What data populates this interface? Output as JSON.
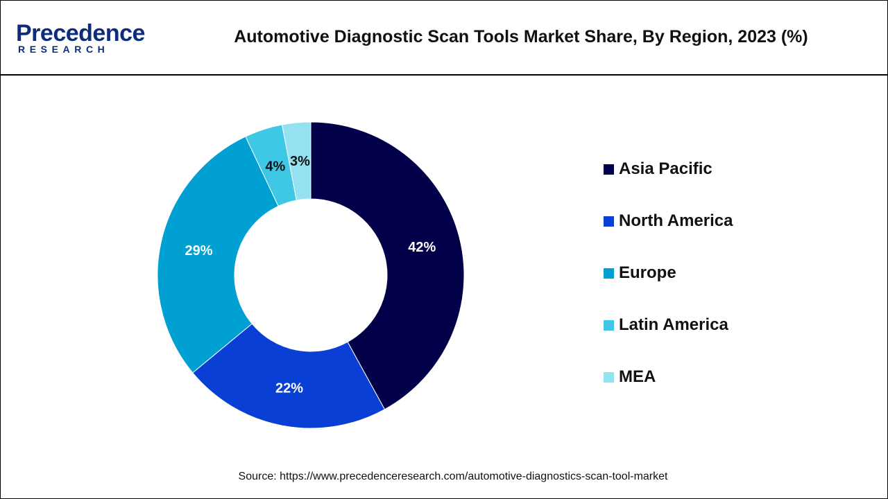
{
  "header": {
    "logo_main": "Precedence",
    "logo_sub": "RESEARCH",
    "title": "Automotive Diagnostic Scan Tools Market Share, By Region, 2023 (%)"
  },
  "chart_data": {
    "type": "pie",
    "variant": "donut",
    "title": "Automotive Diagnostic Scan Tools Market Share, By Region, 2023 (%)",
    "categories": [
      "Asia Pacific",
      "North America",
      "Europe",
      "Latin America",
      "MEA"
    ],
    "values": [
      42,
      22,
      29,
      4,
      3
    ],
    "labels": [
      "42%",
      "22%",
      "29%",
      "4%",
      "3%"
    ],
    "colors": [
      "#03004a",
      "#0a3fd6",
      "#00a0d2",
      "#3ec8e6",
      "#94e1f2"
    ],
    "label_colors": [
      "#ffffff",
      "#ffffff",
      "#ffffff",
      "#111111",
      "#111111"
    ],
    "legend_position": "right",
    "start_angle_deg": 0,
    "direction": "clockwise"
  },
  "footer": {
    "source": "Source: https://www.precedenceresearch.com/automotive-diagnostics-scan-tool-market"
  }
}
